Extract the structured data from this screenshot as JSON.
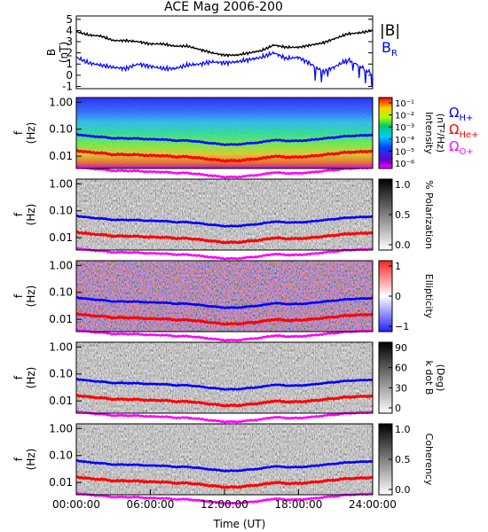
{
  "title": "ACE Mag 2006-200",
  "colors": {
    "h": "#0000ff",
    "he": "#ff0000",
    "o": "#ff00ff",
    "br": "#0000ff",
    "b": "#000000"
  },
  "chart_data": [
    {
      "type": "line",
      "ylabel": "B\n(nT)",
      "y_ticks": [
        "5",
        "4",
        "3",
        "2",
        "1",
        "0",
        "-1"
      ],
      "ylim": [
        -1.2,
        5.3
      ],
      "x_hours": [
        0,
        1,
        2,
        3,
        4,
        5,
        6,
        7,
        8,
        9,
        10,
        11,
        12,
        13,
        14,
        15,
        16,
        17,
        18,
        19,
        20,
        21,
        22,
        23,
        24
      ],
      "series": [
        {
          "name": "|B|",
          "values": [
            3.9,
            3.6,
            3.5,
            3.1,
            3.1,
            3.0,
            2.8,
            2.8,
            2.6,
            2.6,
            2.3,
            2.0,
            1.8,
            1.8,
            2.0,
            2.2,
            2.7,
            2.5,
            2.5,
            2.7,
            2.9,
            3.3,
            3.7,
            3.8,
            4.0
          ]
        },
        {
          "name": "B_R",
          "values": [
            1.6,
            1.1,
            0.9,
            0.7,
            0.6,
            1.0,
            0.8,
            0.6,
            0.6,
            0.9,
            1.0,
            1.2,
            1.1,
            1.2,
            1.4,
            1.6,
            2.0,
            1.5,
            1.6,
            1.0,
            0.3,
            0.8,
            1.4,
            0.8,
            0.1
          ]
        }
      ],
      "legend": [
        "|B|",
        "B",
        "R"
      ]
    },
    {
      "type": "heatmap",
      "ylabel": "f\n(Hz)",
      "colorbar_label": "Intensity\n(nT²/Hz)",
      "colorbar_ticks": [
        "10⁻¹",
        "10⁻²",
        "10⁻³",
        "10⁻⁴",
        "10⁻⁵",
        "10⁻⁶"
      ],
      "legend": [
        "Ω",
        "H+",
        "Ω",
        "He+",
        "Ω",
        "O+"
      ]
    },
    {
      "type": "heatmap",
      "ylabel": "f\n(Hz)",
      "colorbar_label": "% Polarization",
      "colorbar_ticks": [
        "1.0",
        "0.5",
        "0.0"
      ]
    },
    {
      "type": "heatmap",
      "ylabel": "f\n(Hz)",
      "colorbar_label": "Ellipticity",
      "colorbar_ticks": [
        "1",
        "0",
        "−1"
      ]
    },
    {
      "type": "heatmap",
      "ylabel": "f\n(Hz)",
      "colorbar_label": "k dot B\n(Deg)",
      "colorbar_ticks": [
        "90",
        "60",
        "30",
        "0"
      ]
    },
    {
      "type": "heatmap",
      "ylabel": "f\n(Hz)",
      "colorbar_label": "Coherency",
      "colorbar_ticks": [
        "1.0",
        "0.5",
        "0.0"
      ]
    }
  ],
  "gyro": {
    "x_hours": [
      0,
      1,
      2,
      3,
      4,
      5,
      6,
      7,
      8,
      9,
      10,
      11,
      12,
      13,
      14,
      15,
      16,
      17,
      18,
      19,
      20,
      21,
      22,
      23,
      24
    ],
    "h_plus": [
      0.065,
      0.056,
      0.052,
      0.046,
      0.046,
      0.045,
      0.042,
      0.042,
      0.038,
      0.038,
      0.034,
      0.03,
      0.027,
      0.027,
      0.03,
      0.033,
      0.04,
      0.037,
      0.037,
      0.04,
      0.045,
      0.05,
      0.056,
      0.058,
      0.062
    ]
  },
  "spec_freq_ticks": [
    "1.00",
    "0.10",
    "0.01"
  ],
  "spec_flim": [
    0.0035,
    1.5
  ],
  "x_ticks": [
    "00:00:00",
    "06:00:00",
    "12:00:00",
    "18:00:00",
    "24:00:00"
  ],
  "xlabel": "Time (UT)"
}
